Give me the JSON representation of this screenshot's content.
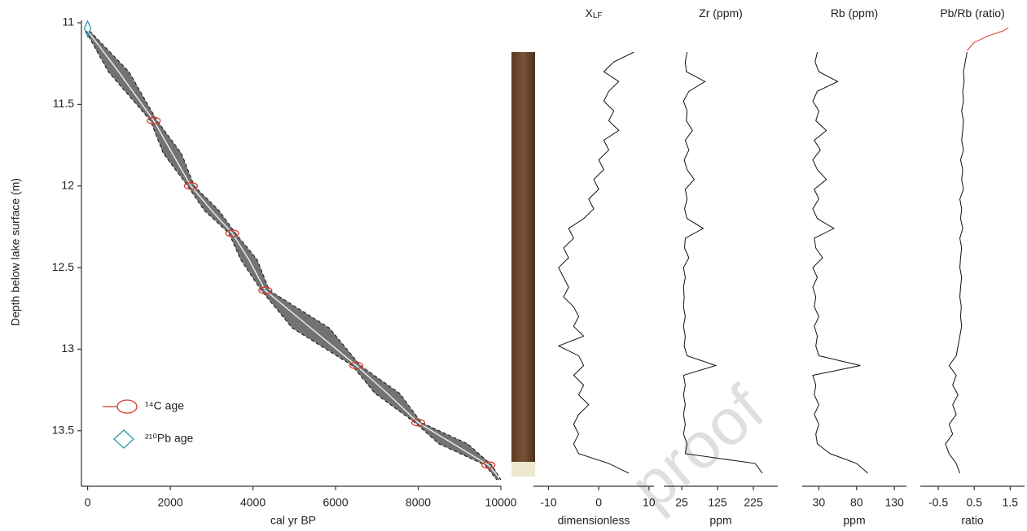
{
  "chart_data": [
    {
      "type": "line",
      "xlabel": "cal yr BP",
      "ylabel": "Depth below lake surface (m)",
      "xlim": [
        -150,
        10000
      ],
      "xticks": [
        0,
        2000,
        4000,
        6000,
        8000,
        10000
      ],
      "ylim": [
        11,
        13.8
      ],
      "yticks": [
        11,
        11.5,
        12,
        12.5,
        13,
        13.5
      ],
      "y_inverted": true,
      "band_color": "#5a5a5a",
      "legend": "lower left",
      "series": [
        {
          "color": "#e8e8e8",
          "style": "solid",
          "x": [
            0,
            750,
            1600,
            2050,
            2500,
            3000,
            3500,
            3900,
            4300,
            5400,
            6500,
            7250,
            8000,
            8850,
            9700,
            10000
          ],
          "values": [
            11.05,
            11.3,
            11.6,
            11.8,
            12.0,
            12.15,
            12.29,
            12.45,
            12.64,
            12.87,
            13.1,
            13.27,
            13.45,
            13.58,
            13.71,
            13.8
          ]
        },
        {
          "color": "#111111",
          "style": "dashed",
          "x": [
            -50,
            500,
            1520,
            1830,
            2420,
            2820,
            3420,
            3700,
            4200,
            4950,
            6400,
            6950,
            7920,
            8500,
            9620,
            9900
          ],
          "values": [
            11.05,
            11.3,
            11.6,
            11.8,
            12.0,
            12.15,
            12.29,
            12.45,
            12.64,
            12.87,
            13.1,
            13.27,
            13.45,
            13.58,
            13.71,
            13.8
          ]
        },
        {
          "color": "#111111",
          "style": "dashed",
          "x": [
            50,
            1000,
            1680,
            2270,
            2580,
            3180,
            3580,
            4100,
            4400,
            5850,
            6600,
            7550,
            8080,
            9200,
            9780,
            10000
          ],
          "values": [
            11.05,
            11.3,
            11.6,
            11.8,
            12.0,
            12.15,
            12.29,
            12.45,
            12.64,
            12.87,
            13.1,
            13.27,
            13.45,
            13.58,
            13.71,
            13.8
          ]
        },
        {
          "name": "¹⁴C age",
          "color": "#d93a2b",
          "marker": "ellipse",
          "x": [
            1600,
            2500,
            3500,
            4300,
            6500,
            8000,
            9700
          ],
          "values": [
            11.6,
            12.0,
            12.29,
            12.64,
            13.1,
            13.45,
            13.71
          ]
        },
        {
          "name": "²¹⁰Pb age",
          "color": "#2a9aa8",
          "marker": "diamond",
          "x": [
            0
          ],
          "values": [
            11.0
          ]
        }
      ]
    },
    {
      "type": "line",
      "title": "X",
      "title_sub": "LF",
      "xlabel": "dimensionless",
      "xlim": [
        -13,
        11
      ],
      "xticks": [
        -10,
        0,
        10
      ],
      "ylim": [
        11,
        13.8
      ],
      "y_inverted": true,
      "y": [
        11.18,
        11.24,
        11.3,
        11.36,
        11.42,
        11.48,
        11.54,
        11.6,
        11.66,
        11.72,
        11.78,
        11.84,
        11.9,
        11.96,
        12.02,
        12.08,
        12.14,
        12.2,
        12.26,
        12.32,
        12.38,
        12.44,
        12.5,
        12.56,
        12.62,
        12.68,
        12.74,
        12.8,
        12.86,
        12.92,
        12.98,
        13.04,
        13.1,
        13.16,
        13.22,
        13.28,
        13.34,
        13.4,
        13.46,
        13.52,
        13.58,
        13.64,
        13.7,
        13.76
      ],
      "series": [
        {
          "color": "#111111",
          "values": [
            7,
            3,
            1,
            4,
            2,
            1,
            3,
            2,
            4,
            1,
            2,
            0,
            1,
            -1,
            0,
            -2,
            -1,
            -3,
            -6,
            -5,
            -7,
            -6,
            -8,
            -7,
            -6,
            -7,
            -5,
            -4,
            -5,
            -3,
            -8,
            -4,
            -3,
            -5,
            -3,
            -4,
            -2,
            -4,
            -5,
            -4,
            -5,
            -4,
            2,
            6
          ]
        }
      ]
    },
    {
      "type": "line",
      "title": "Zr (ppm)",
      "xlabel": "ppm",
      "xlim": [
        -25,
        293
      ],
      "xticks": [
        25,
        125,
        225
      ],
      "ylim": [
        11,
        13.8
      ],
      "y_inverted": true,
      "y": [
        11.18,
        11.24,
        11.3,
        11.36,
        11.42,
        11.48,
        11.54,
        11.6,
        11.66,
        11.72,
        11.78,
        11.84,
        11.9,
        11.96,
        12.02,
        12.08,
        12.14,
        12.2,
        12.26,
        12.32,
        12.38,
        12.44,
        12.5,
        12.56,
        12.62,
        12.68,
        12.74,
        12.8,
        12.86,
        12.92,
        12.98,
        13.04,
        13.1,
        13.16,
        13.22,
        13.28,
        13.34,
        13.4,
        13.46,
        13.52,
        13.58,
        13.64,
        13.7,
        13.76
      ],
      "series": [
        {
          "color": "#111111",
          "values": [
            40,
            35,
            38,
            90,
            45,
            30,
            40,
            38,
            55,
            35,
            45,
            32,
            40,
            60,
            35,
            40,
            33,
            40,
            85,
            35,
            33,
            45,
            30,
            35,
            30,
            32,
            30,
            35,
            30,
            35,
            32,
            40,
            120,
            30,
            35,
            30,
            35,
            30,
            35,
            30,
            40,
            35,
            230,
            250
          ]
        }
      ]
    },
    {
      "type": "line",
      "title": "Rb (ppm)",
      "xlabel": "ppm",
      "xlim": [
        8,
        146
      ],
      "xticks": [
        30,
        80,
        130
      ],
      "ylim": [
        11,
        13.8
      ],
      "y_inverted": true,
      "y": [
        11.18,
        11.24,
        11.3,
        11.36,
        11.42,
        11.48,
        11.54,
        11.6,
        11.66,
        11.72,
        11.78,
        11.84,
        11.9,
        11.96,
        12.02,
        12.08,
        12.14,
        12.2,
        12.26,
        12.32,
        12.38,
        12.44,
        12.5,
        12.56,
        12.62,
        12.68,
        12.74,
        12.8,
        12.86,
        12.92,
        12.98,
        13.04,
        13.1,
        13.16,
        13.22,
        13.28,
        13.34,
        13.4,
        13.46,
        13.52,
        13.58,
        13.64,
        13.7,
        13.76
      ],
      "series": [
        {
          "color": "#111111",
          "values": [
            28,
            25,
            30,
            55,
            28,
            22,
            30,
            26,
            40,
            24,
            32,
            22,
            28,
            40,
            24,
            30,
            22,
            28,
            50,
            24,
            26,
            35,
            22,
            28,
            22,
            26,
            24,
            30,
            24,
            28,
            26,
            30,
            85,
            22,
            26,
            24,
            30,
            24,
            30,
            26,
            28,
            45,
            80,
            95
          ]
        }
      ]
    },
    {
      "type": "line",
      "title": "Pb/Rb (ratio)",
      "xlabel": "ratio",
      "xlim": [
        -1,
        1.9
      ],
      "xticks": [
        -0.5,
        0.5,
        1.5
      ],
      "ylim": [
        11,
        13.8
      ],
      "y_inverted": true,
      "y": [
        11.18,
        11.24,
        11.3,
        11.36,
        11.42,
        11.48,
        11.54,
        11.6,
        11.66,
        11.72,
        11.78,
        11.84,
        11.9,
        11.96,
        12.02,
        12.08,
        12.14,
        12.2,
        12.26,
        12.32,
        12.38,
        12.44,
        12.5,
        12.56,
        12.62,
        12.68,
        12.74,
        12.8,
        12.86,
        12.92,
        12.98,
        13.04,
        13.1,
        13.16,
        13.22,
        13.28,
        13.34,
        13.4,
        13.46,
        13.52,
        13.58,
        13.64,
        13.7,
        13.76
      ],
      "series": [
        {
          "color": "#111111",
          "values": [
            0.3,
            0.25,
            0.2,
            0.22,
            0.18,
            0.2,
            0.15,
            0.2,
            0.18,
            0.15,
            0.2,
            0.12,
            0.18,
            0.15,
            0.2,
            0.1,
            0.15,
            0.12,
            0.18,
            0.1,
            0.15,
            0.12,
            0.1,
            0.15,
            0.12,
            0.1,
            0.14,
            0.12,
            0.15,
            0.1,
            0.05,
            0.0,
            -0.2,
            0.0,
            -0.1,
            0.05,
            -0.1,
            0.0,
            -0.2,
            -0.1,
            -0.3,
            -0.2,
            0.0,
            0.1
          ]
        },
        {
          "color": "#d93a2b",
          "y": [
            11.17,
            11.12,
            11.08,
            11.05,
            11.03
          ],
          "values": [
            0.3,
            0.5,
            0.9,
            1.3,
            1.45
          ]
        }
      ]
    }
  ],
  "watermark": "proof"
}
